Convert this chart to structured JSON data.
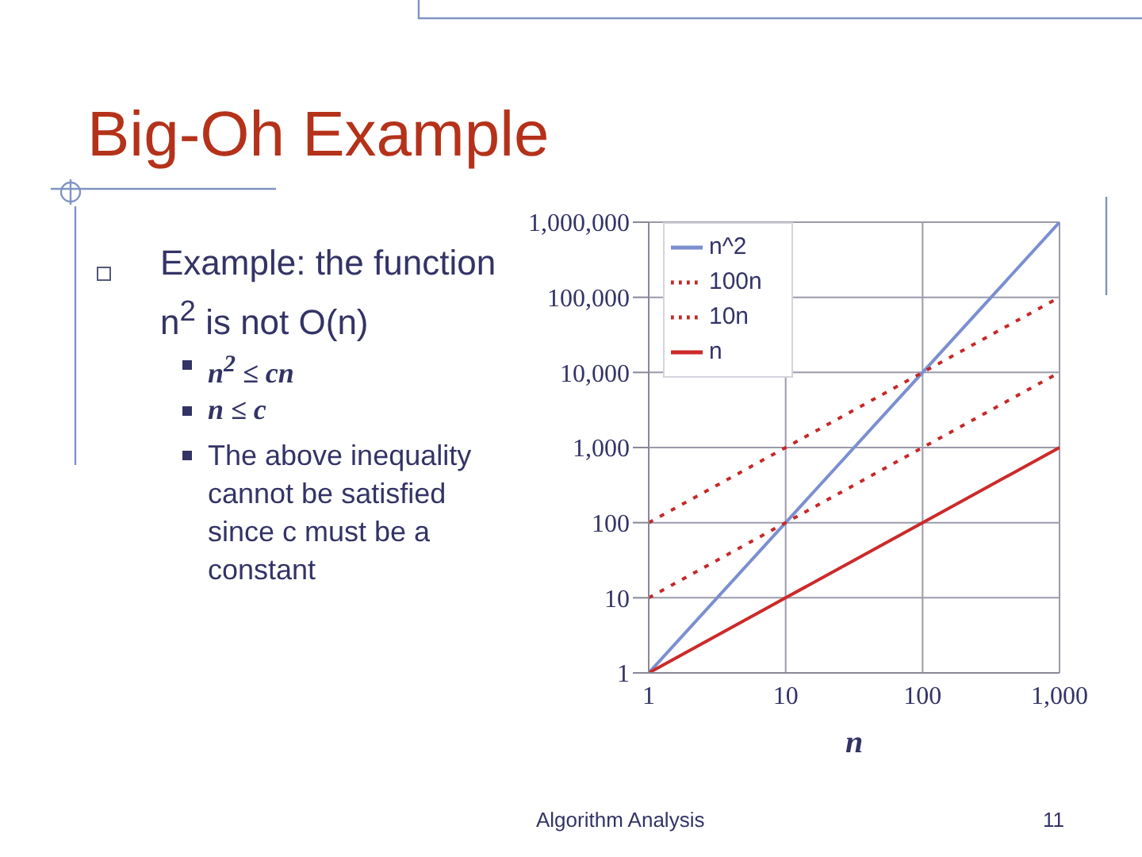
{
  "chart_data": {
    "type": "line",
    "title": "Big-Oh Example",
    "xlabel": "n",
    "annotations": [
      "Example: the function n$^{2}$ is not O(n)",
      "n$^{2}$ ≤ cn",
      "n ≤ c",
      "The above inequality cannot be satisfied since c must be a constant",
      "Algorithm Analysis",
      "11"
    ],
    "x": [
      1,
      10,
      100,
      1000
    ],
    "series": [
      {
        "name": "n^2",
        "color": "#7b8fd0",
        "values": [
          1,
          100,
          10000,
          1000000
        ],
        "line_style": "solid"
      },
      {
        "name": "100n",
        "color": "#c62828",
        "values": [
          100,
          1000,
          10000,
          100000
        ],
        "line_style": "dotted"
      },
      {
        "name": "10n",
        "color": "#c62828",
        "values": [
          10,
          100,
          1000,
          10000
        ],
        "line_style": "dotted"
      },
      {
        "name": "n",
        "color": "#cc2a2a",
        "values": [
          1,
          10,
          100,
          1000
        ],
        "line_style": "solid"
      }
    ],
    "log": "xy",
    "xlim": [
      1,
      1000
    ],
    "ylim": [
      1,
      1000000
    ],
    "xticks": [
      1,
      10,
      100,
      {
        "value": 1000,
        "label": "1,000"
      }
    ],
    "yticks": [
      1,
      10,
      100,
      {
        "value": 1000,
        "label": "1,000"
      },
      {
        "value": 10000,
        "label": "10,000"
      },
      {
        "value": 100000,
        "label": "100,000"
      },
      {
        "value": 1000000,
        "label": "1,000,000"
      }
    ],
    "grid": true,
    "legend": "top left",
    "marker": "none"
  }
}
